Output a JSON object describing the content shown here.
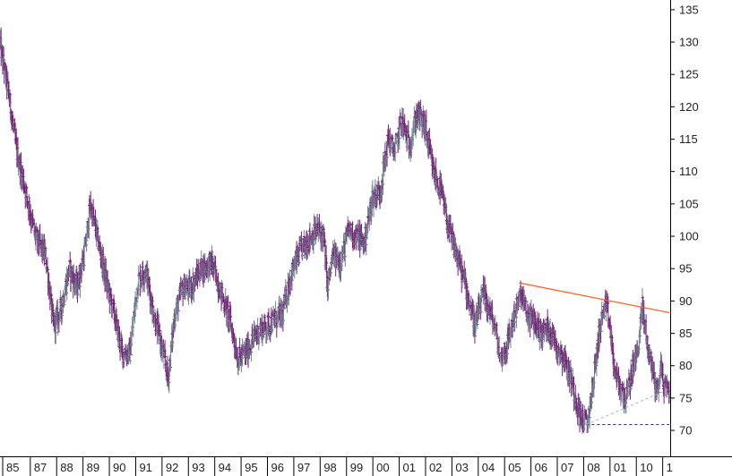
{
  "chart_data": {
    "type": "ohlc",
    "title": "",
    "xlabel": "",
    "ylabel": "",
    "x_ticks": [
      "85",
      "87",
      "88",
      "89",
      "90",
      "91",
      "92",
      "93",
      "94",
      "95",
      "96",
      "97",
      "98",
      "99",
      "00",
      "01",
      "02",
      "03",
      "04",
      "05",
      "06",
      "07",
      "08",
      "01",
      "10",
      "1"
    ],
    "x_tick_years": [
      1985.9,
      1987,
      1988,
      1989,
      1990,
      1991,
      1992,
      1993,
      1994,
      1995,
      1996,
      1997,
      1998,
      1999,
      2000,
      2001,
      2002,
      2003,
      2004,
      2005,
      2006,
      2007,
      2008,
      2009,
      2010,
      2011
    ],
    "y_ticks": [
      70,
      75,
      80,
      85,
      90,
      95,
      100,
      105,
      110,
      115,
      120,
      125,
      130,
      135
    ],
    "ylim": [
      66,
      136.5
    ],
    "xlim": [
      1985.85,
      2011.25
    ],
    "colors": {
      "up": "#708890",
      "down": "#7a1f7a",
      "resistance": "#ff5a1e",
      "support_dashed": "#2a2aa0",
      "support_dotted": "#b0b0b0"
    },
    "price_path": [
      [
        1985.85,
        130
      ],
      [
        1986.2,
        122
      ],
      [
        1986.5,
        113
      ],
      [
        1986.9,
        106
      ],
      [
        1987.2,
        100
      ],
      [
        1987.6,
        97
      ],
      [
        1987.9,
        86
      ],
      [
        1988.2,
        89
      ],
      [
        1988.5,
        95
      ],
      [
        1988.8,
        92
      ],
      [
        1989.1,
        98
      ],
      [
        1989.3,
        105
      ],
      [
        1989.6,
        99
      ],
      [
        1989.9,
        93
      ],
      [
        1990.2,
        88
      ],
      [
        1990.5,
        82
      ],
      [
        1990.8,
        82
      ],
      [
        1991.1,
        93
      ],
      [
        1991.4,
        95
      ],
      [
        1991.7,
        88
      ],
      [
        1992.0,
        83
      ],
      [
        1992.25,
        78
      ],
      [
        1992.5,
        88
      ],
      [
        1992.8,
        92
      ],
      [
        1993.1,
        92
      ],
      [
        1993.5,
        95
      ],
      [
        1993.9,
        96
      ],
      [
        1994.2,
        92
      ],
      [
        1994.6,
        87
      ],
      [
        1994.9,
        81
      ],
      [
        1995.2,
        82
      ],
      [
        1995.6,
        85
      ],
      [
        1995.9,
        86
      ],
      [
        1996.3,
        87
      ],
      [
        1996.6,
        88
      ],
      [
        1996.9,
        94
      ],
      [
        1997.3,
        98
      ],
      [
        1997.7,
        100
      ],
      [
        1997.95,
        101
      ],
      [
        1998.15,
        100
      ],
      [
        1998.3,
        92
      ],
      [
        1998.5,
        97
      ],
      [
        1998.8,
        96
      ],
      [
        1999.1,
        101
      ],
      [
        1999.4,
        100
      ],
      [
        1999.7,
        99
      ],
      [
        2000.0,
        106
      ],
      [
        2000.3,
        107
      ],
      [
        2000.6,
        115
      ],
      [
        2000.85,
        113
      ],
      [
        2001.1,
        118
      ],
      [
        2001.4,
        114
      ],
      [
        2001.7,
        119
      ],
      [
        2002.0,
        117
      ],
      [
        2002.3,
        110
      ],
      [
        2002.6,
        107
      ],
      [
        2002.9,
        101
      ],
      [
        2003.2,
        97
      ],
      [
        2003.5,
        93
      ],
      [
        2003.9,
        86
      ],
      [
        2004.2,
        91
      ],
      [
        2004.5,
        88
      ],
      [
        2004.7,
        85
      ],
      [
        2004.85,
        81
      ],
      [
        2005.1,
        83
      ],
      [
        2005.4,
        88
      ],
      [
        2005.65,
        91
      ],
      [
        2005.85,
        88
      ],
      [
        2006.1,
        87
      ],
      [
        2006.4,
        85
      ],
      [
        2006.7,
        86
      ],
      [
        2007.0,
        83
      ],
      [
        2007.3,
        81
      ],
      [
        2007.6,
        77
      ],
      [
        2007.9,
        72
      ],
      [
        2008.15,
        71
      ],
      [
        2008.4,
        78
      ],
      [
        2008.6,
        85
      ],
      [
        2008.8,
        89
      ],
      [
        2008.95,
        88
      ],
      [
        2009.2,
        79
      ],
      [
        2009.45,
        76
      ],
      [
        2009.65,
        75
      ],
      [
        2009.85,
        79
      ],
      [
        2010.05,
        82
      ],
      [
        2010.25,
        89
      ],
      [
        2010.45,
        83
      ],
      [
        2010.65,
        79
      ],
      [
        2010.8,
        76
      ],
      [
        2010.95,
        80
      ],
      [
        2011.05,
        77
      ],
      [
        2011.15,
        76.5
      ]
    ],
    "resistance_line": [
      [
        2005.55,
        92.8
      ],
      [
        2011.25,
        88.2
      ]
    ],
    "support_dashed": [
      [
        2008.1,
        70.9
      ],
      [
        2011.25,
        70.9
      ]
    ],
    "support_dotted": [
      [
        2008.1,
        70.9
      ],
      [
        2011.2,
        76.3
      ]
    ],
    "grid": false,
    "legend": "none"
  }
}
